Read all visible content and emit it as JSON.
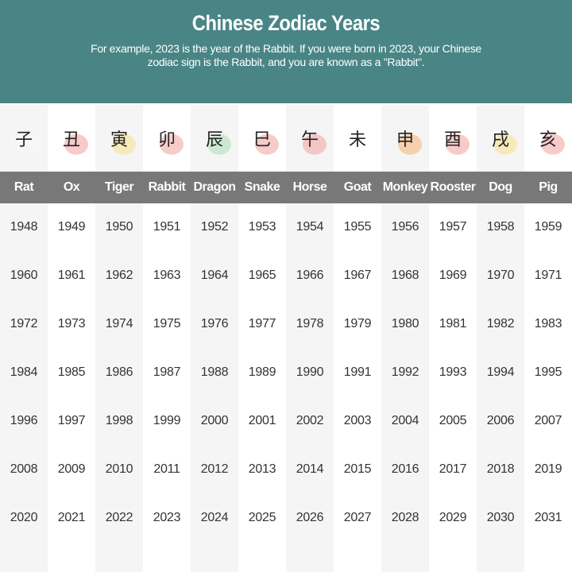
{
  "header": {
    "title": "Chinese Zodiac Years",
    "subtitle": "For example, 2023 is the year of the Rabbit. If you were born in 2023, your Chinese zodiac sign is the Rabbit, and you are known as a \"Rabbit\"."
  },
  "colors": {
    "header_bg": "#4a8585",
    "label_bar": "#787878",
    "alt_column": "#f5f5f5"
  },
  "signs": [
    {
      "name": "Rat",
      "glyph": "子",
      "blob": "#f5f5f5",
      "icon": "rat-icon"
    },
    {
      "name": "Ox",
      "glyph": "丑",
      "blob": "#f2a0a0",
      "icon": "ox-icon"
    },
    {
      "name": "Tiger",
      "glyph": "寅",
      "blob": "#f5e08a",
      "icon": "tiger-icon"
    },
    {
      "name": "Rabbit",
      "glyph": "卯",
      "blob": "#f2a0a0",
      "icon": "rabbit-icon"
    },
    {
      "name": "Dragon",
      "glyph": "辰",
      "blob": "#a8dcb8",
      "icon": "dragon-icon"
    },
    {
      "name": "Snake",
      "glyph": "巳",
      "blob": "#f2a0a0",
      "icon": "snake-icon"
    },
    {
      "name": "Horse",
      "glyph": "午",
      "blob": "#f2a0a0",
      "icon": "horse-icon"
    },
    {
      "name": "Goat",
      "glyph": "未",
      "blob": "#ffffff",
      "icon": "goat-icon"
    },
    {
      "name": "Monkey",
      "glyph": "申",
      "blob": "#f5b070",
      "icon": "monkey-icon"
    },
    {
      "name": "Rooster",
      "glyph": "酉",
      "blob": "#f2a0a0",
      "icon": "rooster-icon"
    },
    {
      "name": "Dog",
      "glyph": "戌",
      "blob": "#f5e08a",
      "icon": "dog-icon"
    },
    {
      "name": "Pig",
      "glyph": "亥",
      "blob": "#f2a0a0",
      "icon": "pig-icon"
    }
  ],
  "years": [
    [
      "1948",
      "1949",
      "1950",
      "1951",
      "1952",
      "1953",
      "1954",
      "1955",
      "1956",
      "1957",
      "1958",
      "1959"
    ],
    [
      "1960",
      "1961",
      "1962",
      "1963",
      "1964",
      "1965",
      "1966",
      "1967",
      "1968",
      "1969",
      "1970",
      "1971"
    ],
    [
      "1972",
      "1973",
      "1974",
      "1975",
      "1976",
      "1977",
      "1978",
      "1979",
      "1980",
      "1981",
      "1982",
      "1983"
    ],
    [
      "1984",
      "1985",
      "1986",
      "1987",
      "1988",
      "1989",
      "1990",
      "1991",
      "1992",
      "1993",
      "1994",
      "1995"
    ],
    [
      "1996",
      "1997",
      "1998",
      "1999",
      "2000",
      "2001",
      "2002",
      "2003",
      "2004",
      "2005",
      "2006",
      "2007"
    ],
    [
      "2008",
      "2009",
      "2010",
      "2011",
      "2012",
      "2013",
      "2014",
      "2015",
      "2016",
      "2017",
      "2018",
      "2019"
    ],
    [
      "2020",
      "2021",
      "2022",
      "2023",
      "2024",
      "2025",
      "2026",
      "2027",
      "2028",
      "2029",
      "2030",
      "2031"
    ]
  ]
}
